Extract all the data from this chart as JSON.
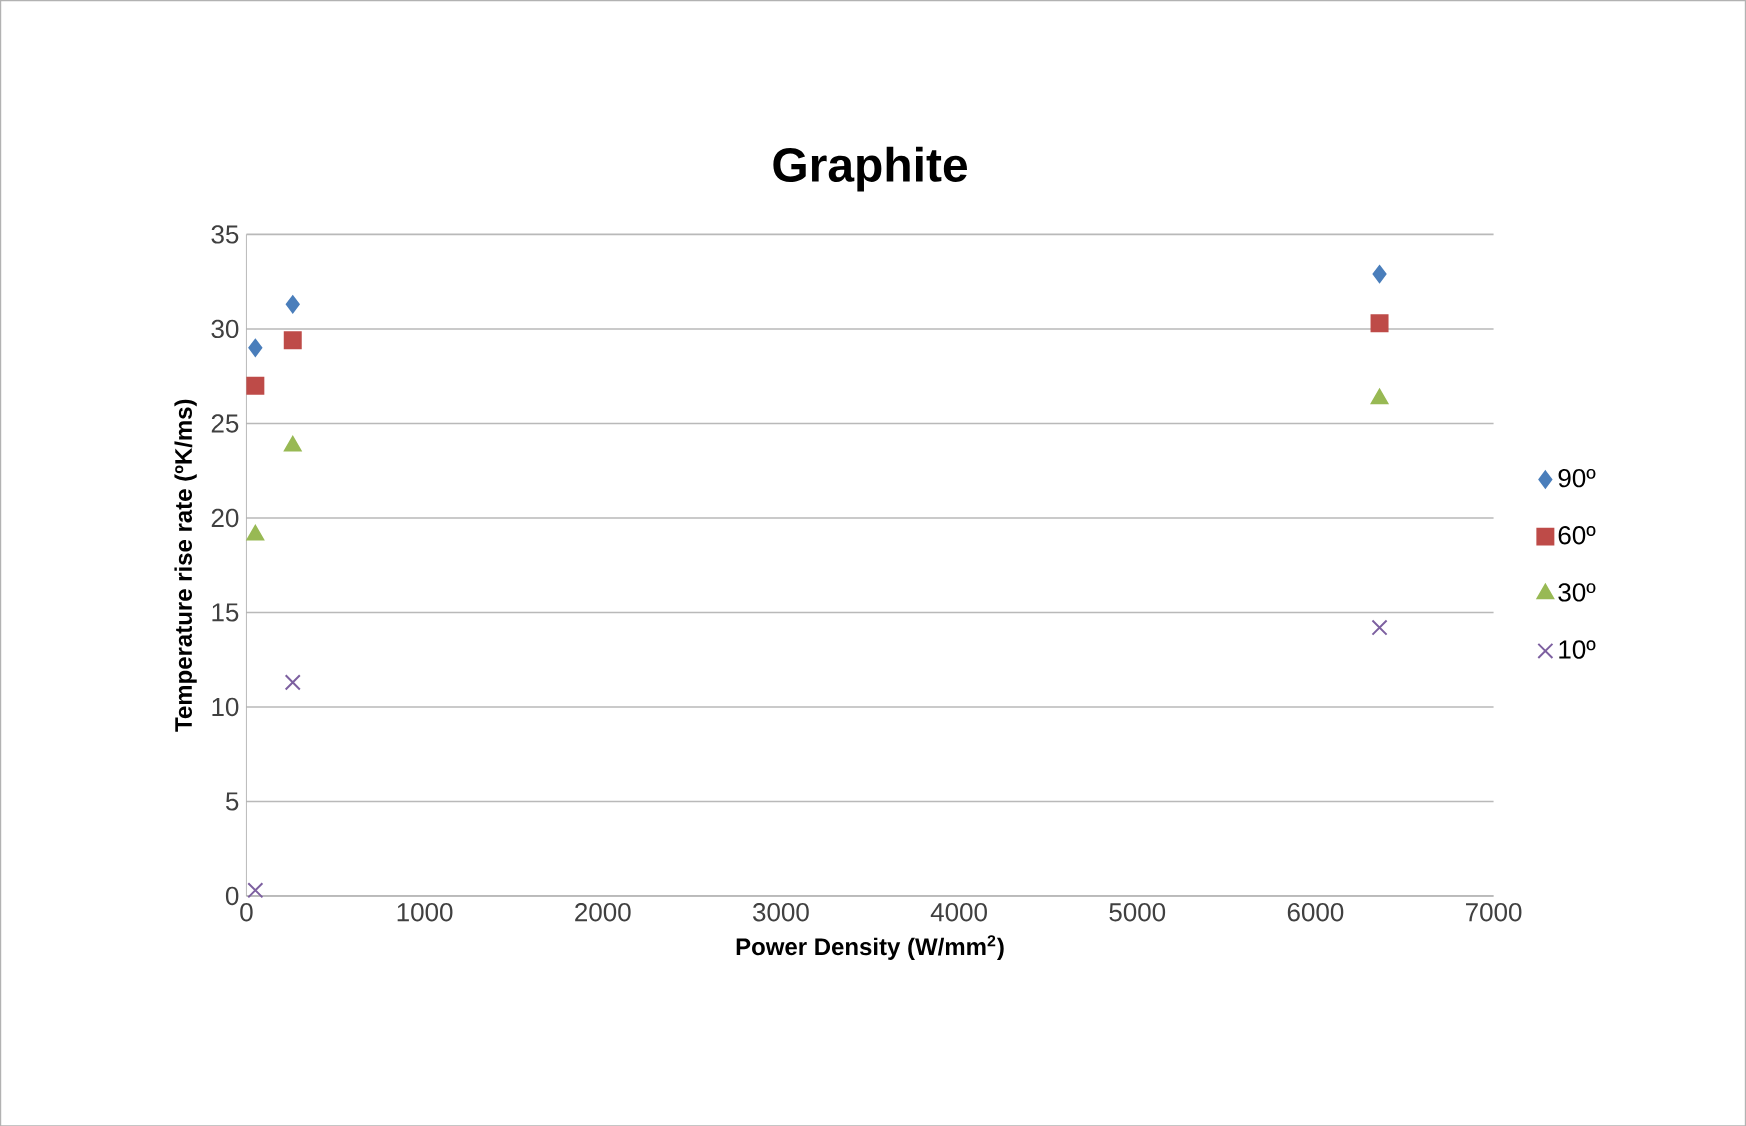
{
  "chart_data": {
    "type": "scatter",
    "title": "Graphite",
    "xlabel": "Power Density (W/mm$^{2}$)",
    "ylabel": "Temperature rise rate (ºK/ms)",
    "xlim": [
      0,
      7000
    ],
    "xticks": [
      0,
      1000,
      2000,
      3000,
      4000,
      5000,
      6000,
      7000
    ],
    "ylim": [
      0,
      35
    ],
    "yticks": [
      0,
      5,
      10,
      15,
      20,
      25,
      30,
      35
    ],
    "grid": "y",
    "legend": "right",
    "series": [
      {
        "name": "90º",
        "color": "#4a7ebb",
        "marker": "diamond",
        "x": [
          50,
          260,
          6360
        ],
        "values": [
          29.0,
          31.3,
          32.9
        ]
      },
      {
        "name": "60º",
        "color": "#be4b48",
        "marker": "square",
        "x": [
          50,
          260,
          6360
        ],
        "values": [
          27.0,
          29.4,
          30.3
        ]
      },
      {
        "name": "30º",
        "color": "#98b954",
        "marker": "triangle",
        "x": [
          50,
          260,
          6360
        ],
        "values": [
          19.1,
          23.8,
          26.3
        ]
      },
      {
        "name": "10º",
        "color": "#7d60a0",
        "marker": "cross",
        "x": [
          50,
          260,
          6360
        ],
        "values": [
          0.3,
          11.3,
          14.2
        ]
      }
    ]
  }
}
